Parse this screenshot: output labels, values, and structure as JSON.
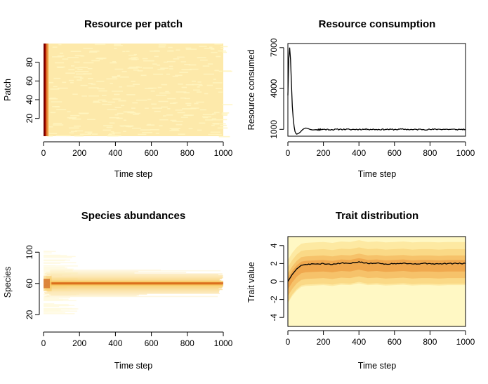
{
  "figure": {
    "panels": [
      {
        "title": "Resource per patch",
        "xlabel": "Time step",
        "ylabel": "Patch"
      },
      {
        "title": "Resource consumption",
        "xlabel": "Time step",
        "ylabel": "Resource consumed"
      },
      {
        "title": "Species abundances",
        "xlabel": "Time step",
        "ylabel": "Species"
      },
      {
        "title": "Trait distribution",
        "xlabel": "Time step",
        "ylabel": "Trait value"
      }
    ]
  },
  "chart_data": [
    {
      "type": "heatmap",
      "title": "Resource per patch",
      "xlabel": "Time step",
      "ylabel": "Patch",
      "xlim": [
        0,
        1000
      ],
      "ylim": [
        1,
        100
      ],
      "xticks": [
        0,
        200,
        400,
        600,
        800,
        1000
      ],
      "yticks": [
        20,
        40,
        60,
        80
      ],
      "colors": {
        "low": "#fff5c0",
        "base": "#fde9aa",
        "high": "#b11c00",
        "max": "#7a0000"
      }
    },
    {
      "type": "line",
      "title": "Resource consumption",
      "xlabel": "Time step",
      "ylabel": "Resource consumed",
      "xlim": [
        0,
        1000
      ],
      "ylim": [
        500,
        7300
      ],
      "xticks": [
        0,
        200,
        400,
        600,
        800,
        1000
      ],
      "yticks": [
        1000,
        4000,
        7000
      ],
      "x": [
        0,
        5,
        10,
        15,
        20,
        25,
        30,
        35,
        40,
        45,
        50,
        55,
        60,
        70,
        80,
        90,
        100,
        110,
        120,
        130,
        140,
        160,
        180,
        200,
        250,
        300,
        350,
        400,
        450,
        500,
        550,
        600,
        650,
        700,
        750,
        800,
        850,
        900,
        950,
        1000
      ],
      "y": [
        3500,
        6200,
        7000,
        6100,
        4300,
        2700,
        1800,
        1200,
        850,
        700,
        650,
        680,
        700,
        800,
        950,
        1050,
        1100,
        1080,
        1020,
        980,
        960,
        980,
        990,
        1000,
        980,
        1010,
        990,
        1000,
        1010,
        990,
        1000,
        990,
        1010,
        980,
        1000,
        990,
        1010,
        1000,
        990,
        1000
      ],
      "color": "#000000"
    },
    {
      "type": "heatmap",
      "title": "Species abundances",
      "xlabel": "Time step",
      "ylabel": "Species",
      "xlim": [
        0,
        1000
      ],
      "ylim": [
        5,
        120
      ],
      "xticks": [
        0,
        200,
        400,
        600,
        800,
        1000
      ],
      "yticks": [
        20,
        60,
        100
      ],
      "colors": {
        "low": "#fffae0",
        "mid": "#f8c860",
        "high": "#d25000",
        "max": "#b22000"
      }
    },
    {
      "type": "area",
      "title": "Trait distribution",
      "xlabel": "Time step",
      "ylabel": "Trait value",
      "xlim": [
        0,
        1000
      ],
      "ylim": [
        -5,
        5
      ],
      "xticks": [
        0,
        200,
        400,
        600,
        800,
        1000
      ],
      "yticks": [
        -4,
        -2,
        0,
        2,
        4
      ],
      "x": [
        0,
        25,
        50,
        75,
        100,
        150,
        200,
        250,
        300,
        350,
        400,
        450,
        500,
        550,
        600,
        650,
        700,
        750,
        800,
        850,
        900,
        950,
        1000
      ],
      "y": [
        0,
        0.8,
        1.4,
        1.8,
        1.9,
        1.95,
        2.0,
        1.9,
        2.05,
        2.0,
        2.2,
        2.0,
        2.05,
        1.95,
        2.0,
        2.05,
        1.95,
        2.0,
        2.0,
        1.95,
        2.0,
        2.0,
        2.0
      ],
      "band_offsets": [
        2.4,
        1.6,
        0.9,
        0.4
      ],
      "band_colors": [
        "#fff8c4",
        "#fde9a2",
        "#fad986",
        "#f6c26a",
        "#f0a84e"
      ],
      "color": "#000000"
    }
  ]
}
